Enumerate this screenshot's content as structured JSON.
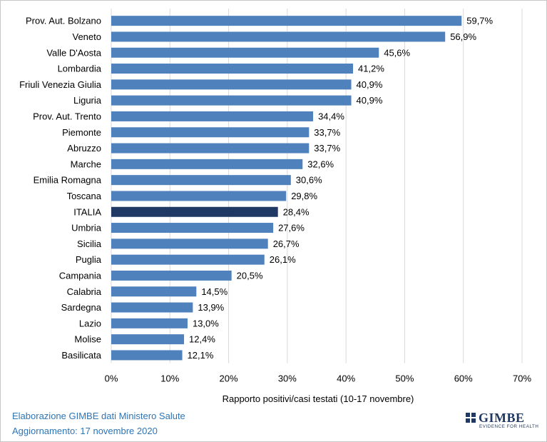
{
  "chart_data": {
    "type": "bar",
    "orientation": "horizontal",
    "categories": [
      "Prov. Aut. Bolzano",
      "Veneto",
      "Valle D'Aosta",
      "Lombardia",
      "Friuli Venezia Giulia",
      "Liguria",
      "Prov. Aut. Trento",
      "Piemonte",
      "Abruzzo",
      "Marche",
      "Emilia Romagna",
      "Toscana",
      "ITALIA",
      "Umbria",
      "Sicilia",
      "Puglia",
      "Campania",
      "Calabria",
      "Sardegna",
      "Lazio",
      "Molise",
      "Basilicata"
    ],
    "values": [
      59.7,
      56.9,
      45.6,
      41.2,
      40.9,
      40.9,
      34.4,
      33.7,
      33.7,
      32.6,
      30.6,
      29.8,
      28.4,
      27.6,
      26.7,
      26.1,
      20.5,
      14.5,
      13.9,
      13.0,
      12.4,
      12.1
    ],
    "value_labels": [
      "59,7%",
      "56,9%",
      "45,6%",
      "41,2%",
      "40,9%",
      "40,9%",
      "34,4%",
      "33,7%",
      "33,7%",
      "32,6%",
      "30,6%",
      "29,8%",
      "28,4%",
      "27,6%",
      "26,7%",
      "26,1%",
      "20,5%",
      "14,5%",
      "13,9%",
      "13,0%",
      "12,4%",
      "12,1%"
    ],
    "highlight_category": "ITALIA",
    "xlim": [
      0,
      70
    ],
    "xticks": [
      0,
      10,
      20,
      30,
      40,
      50,
      60,
      70
    ],
    "xtick_labels": [
      "0%",
      "10%",
      "20%",
      "30%",
      "40%",
      "50%",
      "60%",
      "70%"
    ],
    "xlabel": "Rapporto positivi/casi testati (10-17 novembre)",
    "grid": "vertical",
    "colors": {
      "bar": "#4f81bd",
      "highlight": "#1f3864",
      "grid": "#d9d9d9"
    }
  },
  "footer": {
    "line1": "Elaborazione GIMBE dati Ministero Salute",
    "line2": "Aggiornamento: 17 novembre 2020"
  },
  "logo": {
    "name": "GIMBE",
    "tagline": "EVIDENCE FOR HEALTH"
  }
}
